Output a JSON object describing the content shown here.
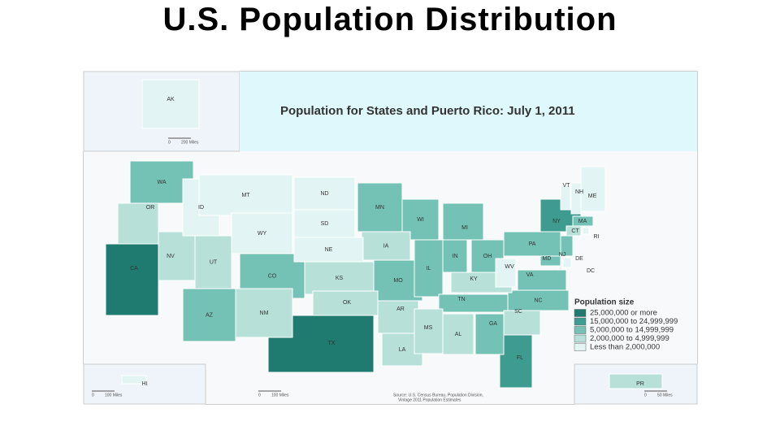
{
  "header": {
    "title": "U.S. Population Distribution"
  },
  "map": {
    "title": "Population for States and Puerto Rico: July 1, 2011",
    "legend": {
      "title": "Population size",
      "classes": [
        {
          "label": "25,000,000 or more",
          "color": "#1f7a6f",
          "states": [
            "CA",
            "TX"
          ]
        },
        {
          "label": "15,000,000 to 24,999,999",
          "color": "#3d9b8f",
          "states": [
            "NY",
            "FL"
          ]
        },
        {
          "label": "5,000,000 to 14,999,999",
          "color": "#74c2b5",
          "states": [
            "WA",
            "AZ",
            "CO",
            "MN",
            "WI",
            "MO",
            "IL",
            "IN",
            "MI",
            "OH",
            "PA",
            "TN",
            "VA",
            "NC",
            "GA",
            "NJ",
            "MA",
            "MD"
          ]
        },
        {
          "label": "2,000,000 to 4,999,999",
          "color": "#b6e0d8",
          "states": [
            "OR",
            "NV",
            "UT",
            "NM",
            "KS",
            "OK",
            "IA",
            "AR",
            "LA",
            "MS",
            "AL",
            "KY",
            "SC",
            "CT",
            "PR"
          ]
        },
        {
          "label": "Less than 2,000,000",
          "color": "#e2f4f3",
          "states": [
            "ID",
            "MT",
            "WY",
            "ND",
            "SD",
            "NE",
            "WV",
            "ME",
            "NH",
            "VT",
            "RI",
            "DE",
            "DC",
            "AK",
            "HI"
          ]
        }
      ]
    },
    "source": [
      "Source: U.S. Census Bureau, Population Division,",
      "Vintage 2011 Population Estimates"
    ],
    "scales": [
      [
        "0",
        "200 Miles"
      ],
      [
        "0",
        "100 Miles"
      ],
      [
        "0",
        "100 Miles"
      ],
      [
        "0",
        "50 Miles"
      ]
    ]
  }
}
